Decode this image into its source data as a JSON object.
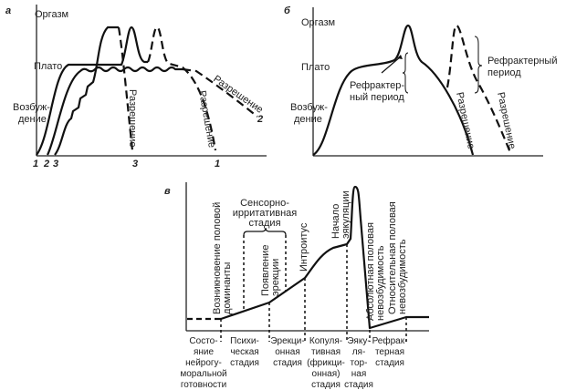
{
  "panel_a": {
    "letter": "а",
    "y_levels": [
      "Оргазм",
      "Плато",
      "Возбуж-",
      "дение"
    ],
    "resolution": "Разрешение",
    "curve_numbers_start": [
      "1",
      "2",
      "3"
    ],
    "curve_numbers_end": [
      "3",
      "1",
      "2"
    ]
  },
  "panel_b": {
    "letter": "б",
    "y_levels": [
      "Оргазм",
      "Плато",
      "Возбуж-",
      "дение"
    ],
    "refractory_inner": [
      "Рефрактер-",
      "ный период"
    ],
    "refractory_outer": [
      "Рефрактерный",
      "период"
    ],
    "resolution": "Разрешение"
  },
  "panel_c": {
    "letter": "в",
    "sensory_stage": [
      "Сенсорно-",
      "ирритативная",
      "стадия"
    ],
    "events": [
      [
        "Возникновение половой",
        "доминанты"
      ],
      [
        "Появление",
        "эрекции"
      ],
      [
        "Интроитус"
      ],
      [
        "Начало",
        "эякуляции"
      ],
      [
        "Абсолютная половая",
        "невозбудимость"
      ],
      [
        "Относительная половая",
        "невозбудимость"
      ]
    ],
    "stages": [
      [
        "Состо-",
        "яние",
        "нейрогу-",
        "моральной",
        "готовности"
      ],
      [
        "Психи-",
        "ческая",
        "стадия"
      ],
      [
        "Эрекци-",
        "онная",
        "стадия"
      ],
      [
        "Копуля-",
        "тивная",
        "(фрикци-",
        "онная)",
        "стадия"
      ],
      [
        "Эяку-",
        "ля-",
        "тор-",
        "ная",
        "стадия"
      ],
      [
        "Рефрак-",
        "терная",
        "стадия"
      ]
    ]
  }
}
